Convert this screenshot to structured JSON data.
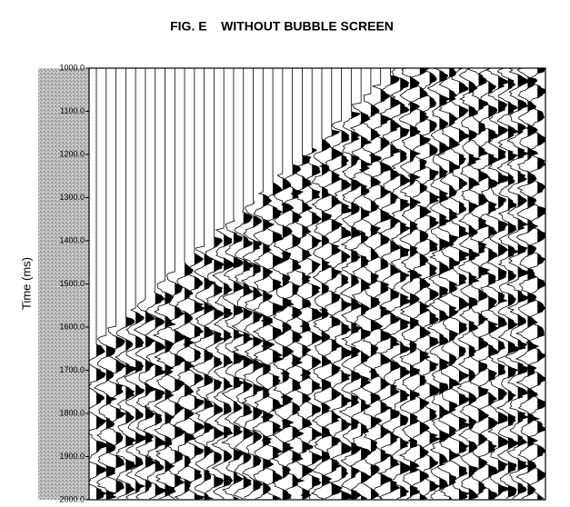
{
  "chart_data": {
    "type": "seismic",
    "title": "FIG. E    WITHOUT BUBBLE SCREEN",
    "ylabel": "Time (ms)",
    "ylim": [
      1000,
      2000
    ],
    "yticks": [
      {
        "value": 1000,
        "label": "1000.0"
      },
      {
        "value": 1100,
        "label": "1100.0"
      },
      {
        "value": 1200,
        "label": "1200.0"
      },
      {
        "value": 1300,
        "label": "1300.0"
      },
      {
        "value": 1400,
        "label": "1400.0"
      },
      {
        "value": 1500,
        "label": "1500.0"
      },
      {
        "value": 1600,
        "label": "1600.0"
      },
      {
        "value": 1700,
        "label": "1700.0"
      },
      {
        "value": 1800,
        "label": "1800.0"
      },
      {
        "value": 1900,
        "label": "1900.0"
      },
      {
        "value": 2000,
        "label": "2000.0"
      }
    ],
    "color": "#000000"
  }
}
